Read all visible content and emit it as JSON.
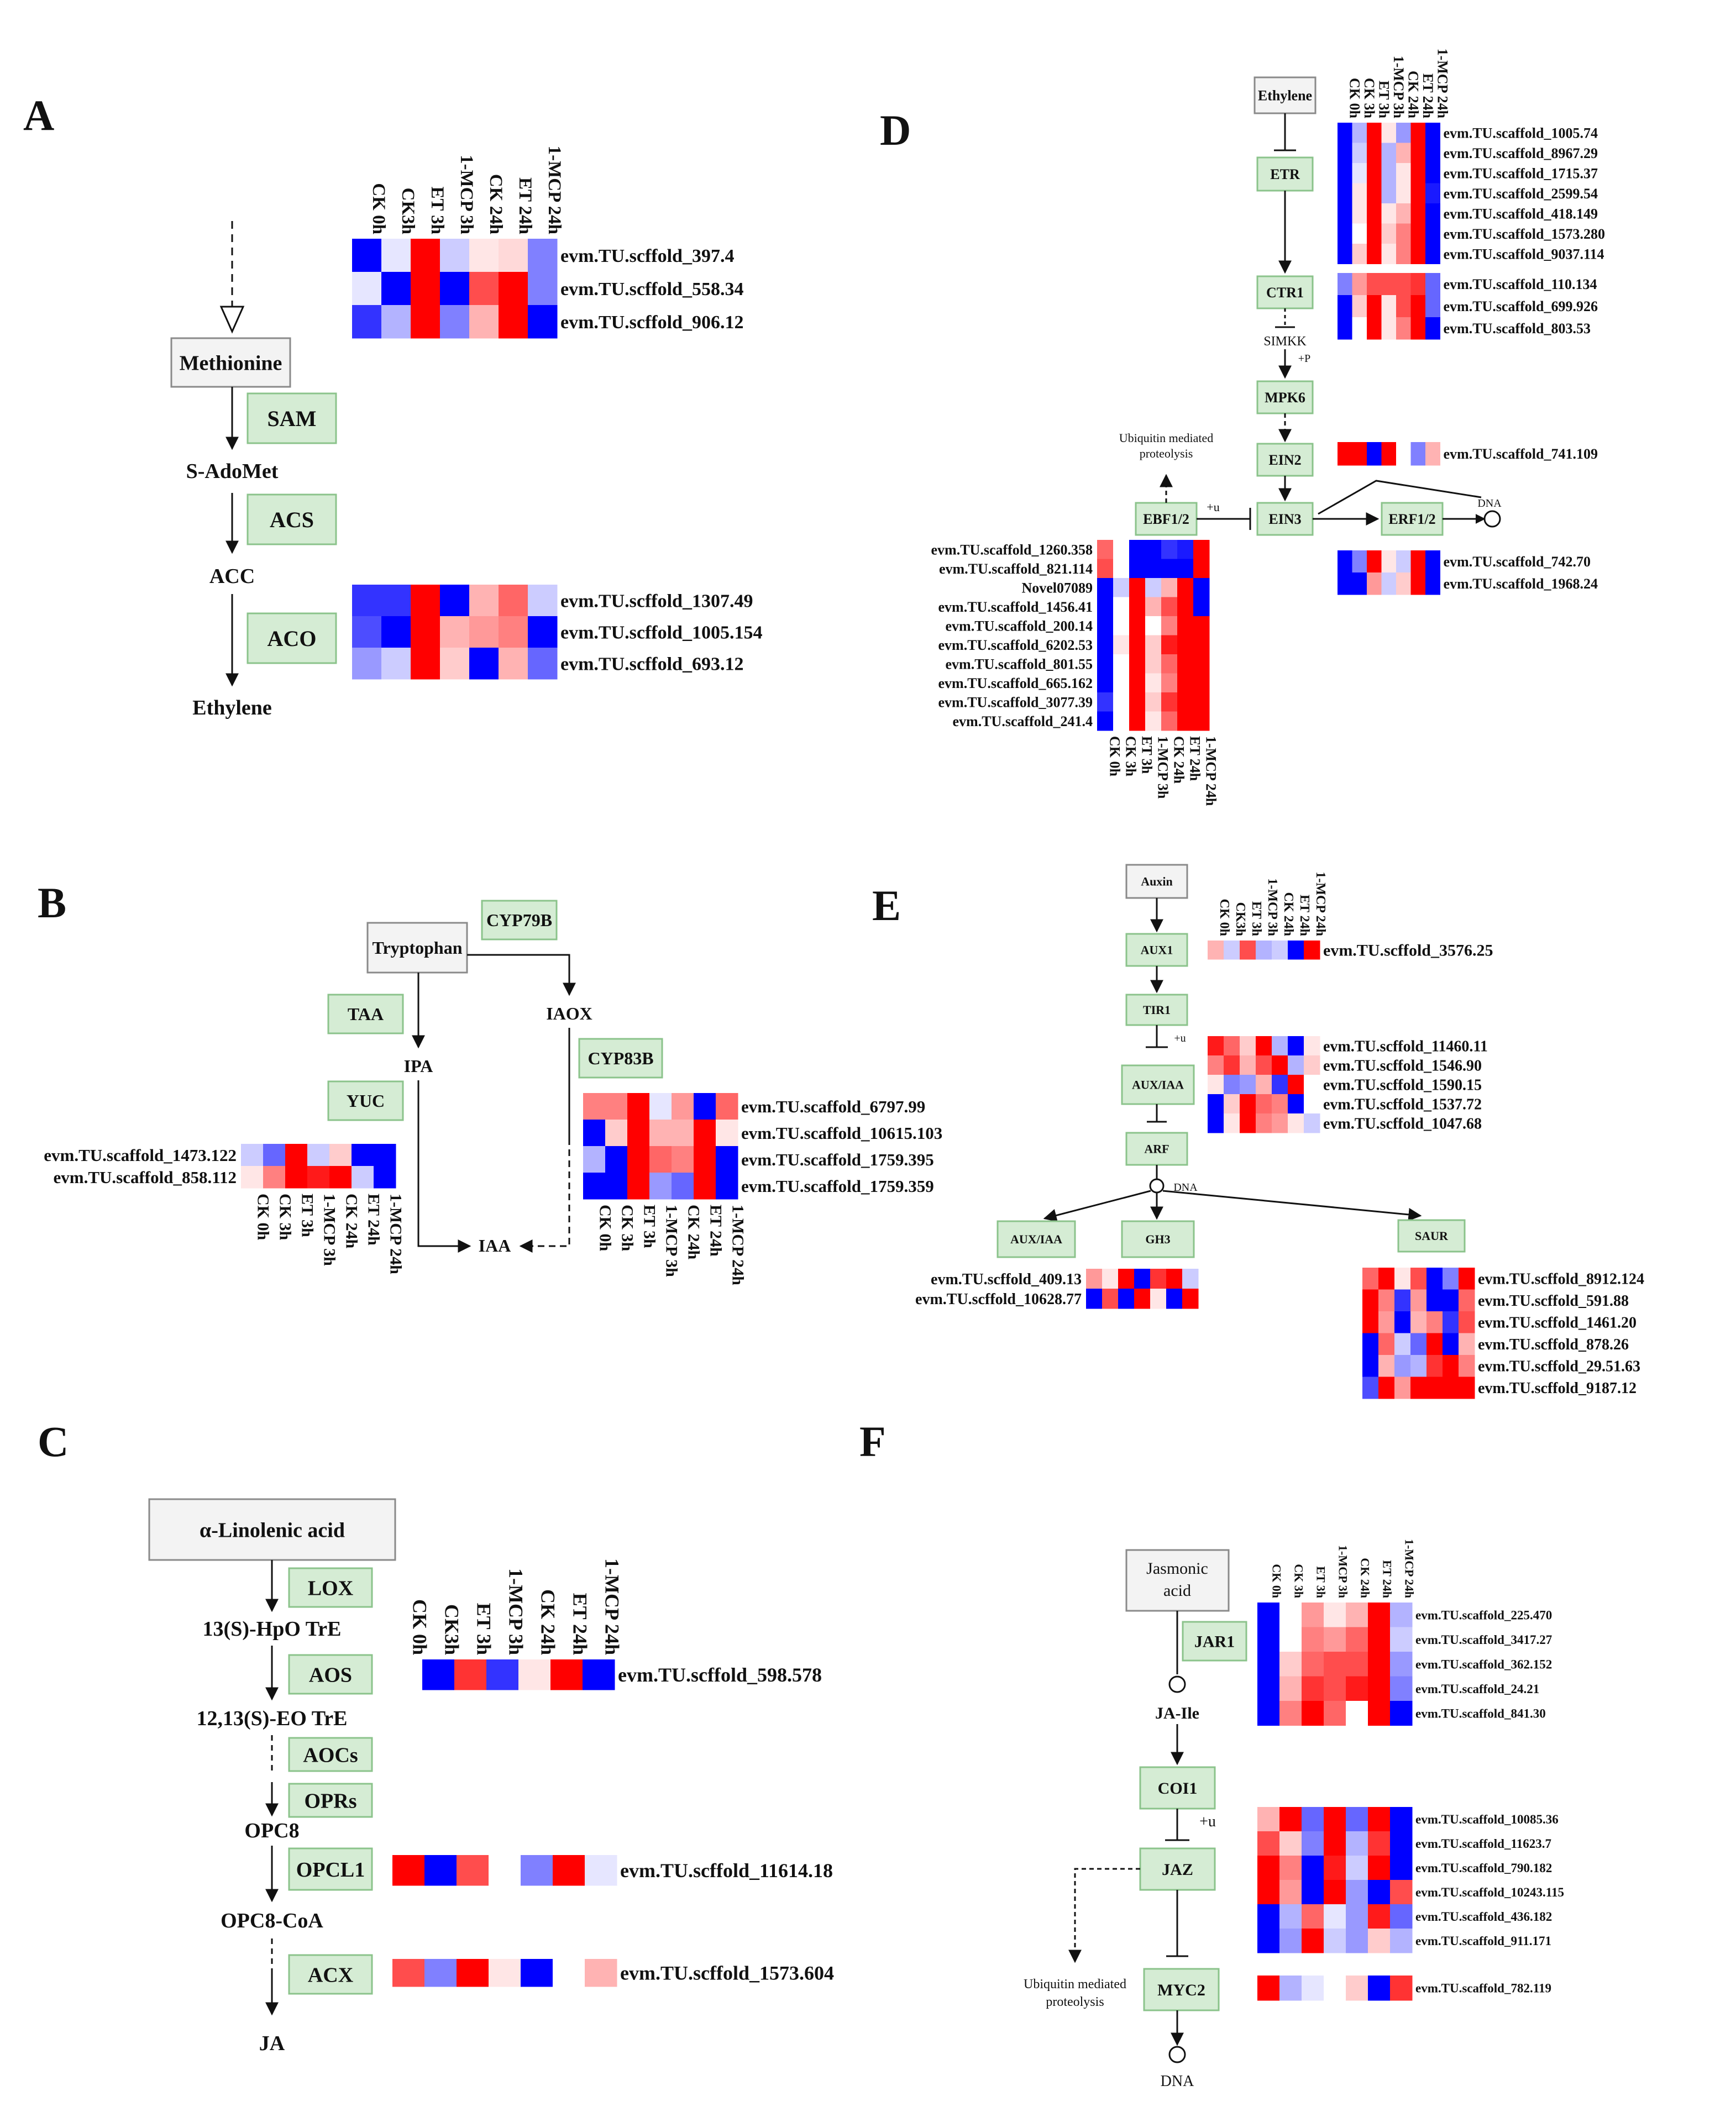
{
  "colors": {
    "green_fill": "#d5ecd4",
    "green_border": "#8bc38b",
    "gray_fill": "#f3f3f3",
    "gray_border": "#8a8a8a",
    "red": "#f20000",
    "blue": "#0000f0"
  },
  "panels": {
    "A": {
      "letter": "A",
      "metabolites": [
        "Methionine",
        "S-AdoMet",
        "ACC",
        "Ethylene"
      ],
      "enzymes": [
        "SAM",
        "ACS",
        "ACO"
      ],
      "conditions": [
        "CK 0h",
        "CK3h",
        "ET 3h",
        "1-MCP 3h",
        "CK 24h",
        "ET 24h",
        "1-MCP 24h"
      ],
      "heatmaps": [
        {
          "genes": [
            "evm.TU.scffold_397.4",
            "evm.TU.scffold_558.34",
            "evm.TU.scffold_906.12"
          ],
          "values": [
            [
              -1.0,
              -0.1,
              1.0,
              -0.2,
              0.1,
              0.15,
              -0.5
            ],
            [
              -0.1,
              -1.0,
              1.0,
              -1.0,
              0.7,
              1.0,
              -0.5
            ],
            [
              -0.8,
              -0.3,
              1.0,
              -0.5,
              0.3,
              1.0,
              -1.0
            ]
          ]
        },
        {
          "genes": [
            "evm.TU.scffold_1307.49",
            "evm.TU.scffold_1005.154",
            "evm.TU.scffold_693.12"
          ],
          "values": [
            [
              -0.8,
              -0.8,
              1.0,
              -1.0,
              0.3,
              0.6,
              -0.2
            ],
            [
              -0.7,
              -1.0,
              1.0,
              0.3,
              0.4,
              0.5,
              -1.0
            ],
            [
              -0.4,
              -0.2,
              1.0,
              0.2,
              -1.0,
              0.3,
              -0.6
            ]
          ]
        }
      ]
    },
    "B": {
      "letter": "B",
      "metabolites": [
        "Tryptophan",
        "IPA",
        "IAOX",
        "IAA"
      ],
      "enzymes": [
        "CYP79B",
        "TAA",
        "YUC",
        "CYP83B"
      ],
      "conditions": [
        "CK 0h",
        "CK 3h",
        "ET 3h",
        "1-MCP 3h",
        "CK 24h",
        "ET 24h",
        "1-MCP 24h"
      ],
      "heatmaps": [
        {
          "genes": [
            "evm.TU.scaffold_1473.122",
            "evm.TU.scaffold_858.112"
          ],
          "values": [
            [
              -0.2,
              -0.6,
              1.0,
              -0.2,
              0.2,
              -1.0,
              -1.0
            ],
            [
              0.1,
              0.5,
              1.0,
              0.9,
              1.0,
              -0.2,
              -1.0
            ]
          ]
        },
        {
          "genes": [
            "evm.TU.scaffold_6797.99",
            "evm.TU.scaffold_10615.103",
            "evm.TU.scaffold_1759.395",
            "evm.TU.scaffold_1759.359"
          ],
          "values": [
            [
              0.5,
              0.5,
              1.0,
              -0.1,
              0.4,
              -1.0,
              0.6
            ],
            [
              -1.0,
              0.2,
              1.0,
              0.3,
              0.3,
              1.0,
              0.1
            ],
            [
              -0.3,
              -1.0,
              1.0,
              0.6,
              0.5,
              1.0,
              -1.0
            ],
            [
              -1.0,
              -1.0,
              1.0,
              -0.4,
              -0.6,
              1.0,
              -1.0
            ]
          ]
        }
      ]
    },
    "C": {
      "letter": "C",
      "metabolites": [
        "α-Linolenic acid",
        "13(S)-HpO TrE",
        "12,13(S)-EO TrE",
        "OPC8",
        "OPC8-CoA",
        "JA"
      ],
      "enzymes": [
        "LOX",
        "AOS",
        "AOCs",
        "OPRs",
        "OPCL1",
        "ACX"
      ],
      "conditions": [
        "CK 0h",
        "CK3h",
        "ET 3h",
        "1-MCP 3h",
        "CK 24h",
        "ET 24h",
        "1-MCP 24h"
      ],
      "heatmaps": [
        {
          "genes": [
            "evm.TU.scffold_598.578"
          ],
          "values": [
            [
              0.0,
              -1.0,
              0.8,
              -0.8,
              0.1,
              1.0,
              -1.0
            ]
          ]
        },
        {
          "genes": [
            "evm.TU.scffold_11614.18"
          ],
          "values": [
            [
              1.0,
              -1.0,
              0.7,
              0.0,
              -0.5,
              1.0,
              -0.1
            ]
          ]
        },
        {
          "genes": [
            "evm.TU.scffold_1573.604"
          ],
          "values": [
            [
              0.7,
              -0.5,
              1.0,
              0.1,
              -1.0,
              0.0,
              0.3
            ]
          ]
        }
      ]
    },
    "D": {
      "letter": "D",
      "nodes": [
        "Ethylene",
        "ETR",
        "CTR1",
        "SIMKK",
        "+P",
        "MPK6",
        "EIN2",
        "EBF1/2",
        "+u",
        "EIN3",
        "ERF1/2",
        "DNA",
        "Ubiquitin mediated",
        "proteolysis"
      ],
      "conditions": [
        "CK 0h",
        "CK 3h",
        "ET 3h",
        "1-MCP 3h",
        "CK 24h",
        "ET 24h",
        "1-MCP 24h"
      ],
      "heatmaps": [
        {
          "genes": [
            "evm.TU.scaffold_1005.74",
            "evm.TU.scaffold_8967.29",
            "evm.TU.scaffold_1715.37",
            "evm.TU.scaffold_2599.54",
            "evm.TU.scaffold_418.149",
            "evm.TU.scaffold_1573.280",
            "evm.TU.scaffold_9037.114"
          ],
          "values": [
            [
              -1.0,
              -0.3,
              1.0,
              0.1,
              -0.4,
              1.0,
              -1.0
            ],
            [
              -1.0,
              -0.2,
              1.0,
              -0.3,
              0.3,
              1.0,
              -1.0
            ],
            [
              -1.0,
              -0.1,
              1.0,
              -0.3,
              0.1,
              1.0,
              -1.0
            ],
            [
              -1.0,
              0.1,
              1.0,
              -0.3,
              0.1,
              1.0,
              -0.9
            ],
            [
              -1.0,
              0.1,
              1.0,
              0.1,
              0.3,
              1.0,
              -1.0
            ],
            [
              -1.0,
              0.0,
              1.0,
              0.2,
              0.5,
              1.0,
              -1.0
            ],
            [
              -1.0,
              0.2,
              1.0,
              0.1,
              0.5,
              1.0,
              -1.0
            ]
          ]
        },
        {
          "genes": [
            "evm.TU.scaffold_110.134",
            "evm.TU.scaffold_699.926",
            "evm.TU.scaffold_803.53"
          ],
          "values": [
            [
              -0.5,
              0.4,
              0.7,
              0.7,
              0.7,
              0.8,
              -0.6
            ],
            [
              -1.0,
              0.2,
              1.0,
              0.1,
              0.7,
              1.0,
              -0.6
            ],
            [
              -1.0,
              0.0,
              1.0,
              0.1,
              0.5,
              1.0,
              -1.0
            ]
          ]
        },
        {
          "genes": [
            "evm.TU.scaffold_741.109"
          ],
          "values": [
            [
              1.0,
              1.0,
              -1.0,
              1.0,
              0.0,
              -0.5,
              0.3
            ]
          ]
        },
        {
          "genes": [
            "evm.TU.scaffold_742.70",
            "evm.TU.scaffold_1968.24"
          ],
          "values": [
            [
              -1.0,
              -0.5,
              1.0,
              0.1,
              -0.2,
              1.0,
              -1.0
            ],
            [
              -1.0,
              -1.0,
              0.4,
              -0.2,
              0.2,
              1.0,
              -1.0
            ]
          ]
        },
        {
          "genes": [
            "evm.TU.scaffold_1260.358",
            "evm.TU.scaffold_821.114",
            "Novel07089",
            "evm.TU.scaffold_1456.41",
            "evm.TU.scaffold_200.14",
            "evm.TU.scaffold_6202.53",
            "evm.TU.scaffold_801.55",
            "evm.TU.scaffold_665.162",
            "evm.TU.scaffold_3077.39",
            "evm.TU.scaffold_241.4"
          ],
          "values": [
            [
              0.6,
              0.0,
              -1.0,
              -1.0,
              -0.8,
              -0.9,
              1.0
            ],
            [
              0.7,
              0.0,
              -1.0,
              -1.0,
              -1.0,
              -1.0,
              1.0
            ],
            [
              -1.0,
              -0.2,
              1.0,
              -0.2,
              0.3,
              1.0,
              -1.0
            ],
            [
              -1.0,
              0.0,
              1.0,
              0.3,
              0.7,
              1.0,
              -1.0
            ],
            [
              -1.0,
              0.0,
              1.0,
              0.0,
              0.5,
              1.0,
              1.0
            ],
            [
              -1.0,
              0.1,
              1.0,
              0.2,
              0.9,
              1.0,
              1.0
            ],
            [
              -1.0,
              0.0,
              1.0,
              0.2,
              0.6,
              1.0,
              1.0
            ],
            [
              -1.0,
              0.0,
              1.0,
              0.1,
              0.5,
              1.0,
              1.0
            ],
            [
              -0.8,
              0.0,
              1.0,
              0.2,
              0.8,
              1.0,
              1.0
            ],
            [
              -1.0,
              0.0,
              1.0,
              0.1,
              0.6,
              1.0,
              1.0
            ]
          ]
        }
      ]
    },
    "E": {
      "letter": "E",
      "nodes": [
        "Auxin",
        "AUX1",
        "TIR1",
        "+u",
        "AUX/IAA",
        "ARF",
        "DNA",
        "AUX/IAA",
        "GH3",
        "SAUR"
      ],
      "conditions": [
        "CK 0h",
        "CK3h",
        "ET 3h",
        "1-MCP 3h",
        "CK 24h",
        "ET 24h",
        "1-MCP 24h"
      ],
      "heatmaps": [
        {
          "genes": [
            "evm.TU.scffold_3576.25"
          ],
          "values": [
            [
              0.3,
              -0.2,
              0.7,
              -0.3,
              -0.2,
              -1.0,
              1.0
            ]
          ]
        },
        {
          "genes": [
            "evm.TU.scffold_11460.11",
            "evm.TU.scffold_1546.90",
            "evm.TU.scffold_1590.15",
            "evm.TU.scffold_1537.72",
            "evm.TU.scffold_1047.68"
          ],
          "values": [
            [
              0.9,
              0.6,
              0.2,
              1.0,
              -0.3,
              -1.0,
              0.1
            ],
            [
              0.5,
              0.8,
              0.3,
              0.7,
              1.0,
              -0.3,
              0.2
            ],
            [
              0.1,
              -0.5,
              -0.4,
              0.3,
              -0.8,
              1.0,
              0.0
            ],
            [
              -1.0,
              0.2,
              1.0,
              0.6,
              0.5,
              -1.0,
              0.0
            ],
            [
              -1.0,
              0.1,
              1.0,
              0.5,
              0.4,
              0.1,
              -0.2
            ]
          ]
        },
        {
          "genes": [
            "evm.TU.scffold_409.13",
            "evm.TU.scffold_10628.77"
          ],
          "values": [
            [
              0.4,
              0.1,
              1.0,
              -1.0,
              0.8,
              1.0,
              -0.2
            ],
            [
              -1.0,
              0.7,
              -1.0,
              1.0,
              0.1,
              -1.0,
              1.0
            ]
          ]
        },
        {
          "genes": [
            "evm.TU.scffold_8912.124",
            "evm.TU.scffold_591.88",
            "evm.TU.scffold_1461.20",
            "evm.TU.scffold_878.26",
            "evm.TU.scffold_29.51.63",
            "evm.TU.scffold_9187.12"
          ],
          "values": [
            [
              0.6,
              1.0,
              0.1,
              0.7,
              -1.0,
              -0.5,
              1.0
            ],
            [
              1.0,
              0.5,
              -0.8,
              0.4,
              -1.0,
              -1.0,
              0.6
            ],
            [
              1.0,
              0.4,
              -1.0,
              0.3,
              0.5,
              -0.8,
              0.7
            ],
            [
              -1.0,
              0.6,
              -0.2,
              -0.6,
              1.0,
              -1.0,
              0.3
            ],
            [
              -1.0,
              0.3,
              -0.4,
              -0.3,
              0.8,
              1.0,
              0.5
            ],
            [
              -0.7,
              1.0,
              0.4,
              1.0,
              1.0,
              1.0,
              1.0
            ]
          ]
        }
      ]
    },
    "F": {
      "letter": "F",
      "nodes": [
        "Jasmonic",
        "acid",
        "JAR1",
        "JA-Ile",
        "COI1",
        "+u",
        "JAZ",
        "MYC2",
        "DNA",
        "Ubiquitin mediated",
        "proteolysis"
      ],
      "conditions": [
        "CK 0h",
        "CK 3h",
        "ET 3h",
        "1-MCP 3h",
        "CK 24h",
        "ET 24h",
        "1-MCP 24h"
      ],
      "heatmaps": [
        {
          "genes": [
            "evm.TU.scaffold_225.470",
            "evm.TU.scaffold_3417.27",
            "evm.TU.scaffold_362.152",
            "evm.TU.scaffold_24.21",
            "evm.TU.scaffold_841.30"
          ],
          "values": [
            [
              -1.0,
              0.0,
              0.4,
              0.1,
              0.3,
              1.0,
              -0.3
            ],
            [
              -1.0,
              0.0,
              0.5,
              0.4,
              0.6,
              1.0,
              -0.2
            ],
            [
              -1.0,
              0.2,
              0.6,
              0.7,
              0.7,
              1.0,
              -0.4
            ],
            [
              -1.0,
              0.3,
              0.8,
              0.7,
              0.9,
              1.0,
              -0.5
            ],
            [
              -1.0,
              0.5,
              1.0,
              0.6,
              0.0,
              1.0,
              -1.0
            ]
          ]
        },
        {
          "genes": [
            "evm.TU.scaffold_10085.36",
            "evm.TU.scaffold_11623.7",
            "evm.TU.scaffold_790.182",
            "evm.TU.scaffold_10243.115",
            "evm.TU.scaffold_436.182",
            "evm.TU.scaffold_911.171"
          ],
          "values": [
            [
              0.3,
              1.0,
              -0.6,
              1.0,
              -0.6,
              1.0,
              -1.0
            ],
            [
              0.7,
              0.2,
              -0.5,
              1.0,
              -0.3,
              0.8,
              -1.0
            ],
            [
              1.0,
              0.5,
              -1.0,
              0.9,
              -0.2,
              1.0,
              -1.0
            ],
            [
              1.0,
              0.4,
              -1.0,
              1.0,
              -0.4,
              -1.0,
              0.7
            ],
            [
              -1.0,
              -0.3,
              0.6,
              -0.1,
              -0.4,
              0.9,
              -0.6
            ],
            [
              -1.0,
              -0.4,
              1.0,
              -0.2,
              -0.4,
              0.2,
              -0.3
            ]
          ]
        },
        {
          "genes": [
            "evm.TU.scaffold_782.119"
          ],
          "values": [
            [
              1.0,
              -0.3,
              -0.1,
              0.0,
              0.2,
              -1.0,
              0.8
            ]
          ]
        }
      ]
    }
  }
}
